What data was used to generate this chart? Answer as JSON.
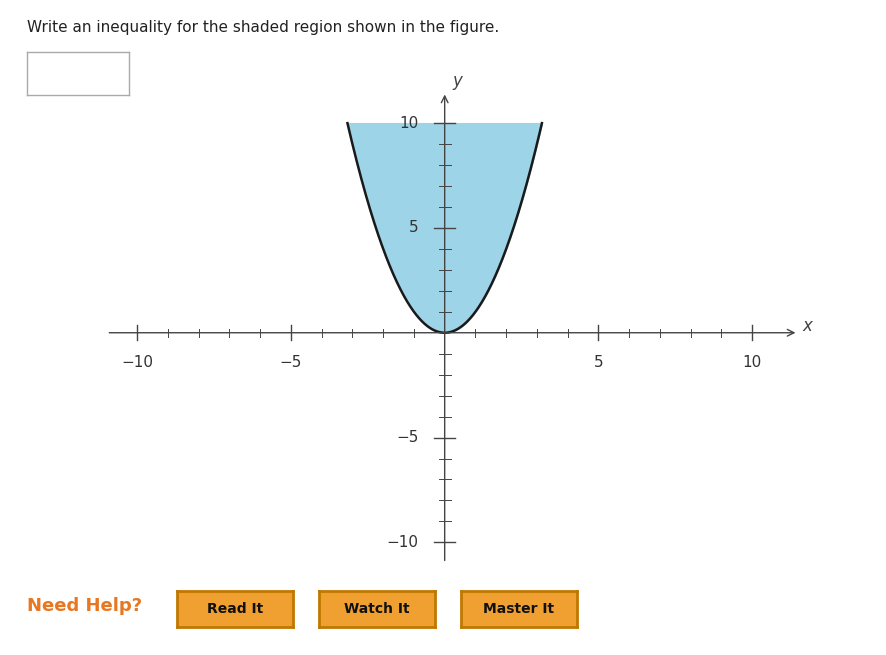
{
  "title": "Write an inequality for the shaded region shown in the figure.",
  "xlim": [
    -11,
    11.5
  ],
  "ylim": [
    -11,
    11.5
  ],
  "xticks": [
    -10,
    -5,
    5,
    10
  ],
  "yticks": [
    -10,
    -5,
    5,
    10
  ],
  "minor_xticks": [
    -9,
    -8,
    -7,
    -6,
    -4,
    -3,
    -2,
    -1,
    1,
    2,
    3,
    4,
    6,
    7,
    8,
    9
  ],
  "minor_yticks": [
    -9,
    -8,
    -7,
    -6,
    -4,
    -3,
    -2,
    -1,
    1,
    2,
    3,
    4,
    6,
    7,
    8,
    9
  ],
  "parabola_a": 1,
  "shade_top": 10,
  "shade_color": "#9dd4e8",
  "curve_color": "#1a1a1a",
  "curve_linewidth": 1.8,
  "axis_color": "#444444",
  "tick_label_color": "#333333",
  "bg_color": "#ffffff",
  "need_help_color": "#e87722",
  "button_bg": "#f0a030",
  "button_border": "#c07800",
  "button_texts": [
    "Read It",
    "Watch It",
    "Master It"
  ]
}
